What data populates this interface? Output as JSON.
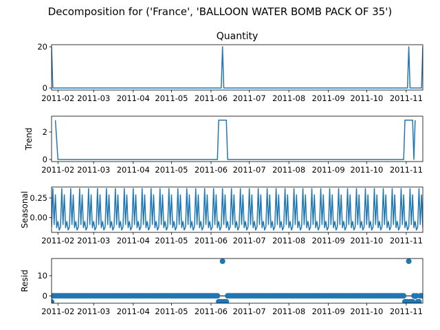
{
  "chart_data": {
    "type": "line",
    "title": "Decomposition for ('France', 'BALLOON WATER BOMB PACK OF 35')",
    "x_tick_labels": [
      "2011-02",
      "2011-03",
      "2011-04",
      "2011-05",
      "2011-06",
      "2011-07",
      "2011-08",
      "2011-09",
      "2011-10",
      "2011-11"
    ],
    "x_range": [
      "2011-01-27",
      "2011-11-14"
    ],
    "color": "#1f77b4",
    "panels": [
      {
        "title": "Quantity",
        "ylabel": "",
        "kind": "line",
        "ylim": [
          -1,
          21
        ],
        "yticks": [
          0,
          20
        ],
        "points": [
          [
            "2011-01-27",
            20
          ],
          [
            "2011-01-28",
            0
          ],
          [
            "2011-06-09",
            0
          ],
          [
            "2011-06-10",
            20
          ],
          [
            "2011-06-11",
            0
          ],
          [
            "2011-11-02",
            0
          ],
          [
            "2011-11-03",
            20
          ],
          [
            "2011-11-04",
            0
          ],
          [
            "2011-11-13",
            0
          ],
          [
            "2011-11-14",
            20
          ]
        ]
      },
      {
        "title": "",
        "ylabel": "Trend",
        "kind": "line",
        "ylim": [
          -0.15,
          3.15
        ],
        "yticks": [
          0,
          2
        ],
        "points": [
          [
            "2011-01-30",
            2.86
          ],
          [
            "2011-02-01",
            0
          ],
          [
            "2011-06-06",
            0
          ],
          [
            "2011-06-07",
            2.86
          ],
          [
            "2011-06-13",
            2.86
          ],
          [
            "2011-06-14",
            0
          ],
          [
            "2011-10-30",
            0
          ],
          [
            "2011-10-31",
            2.86
          ],
          [
            "2011-11-06",
            2.86
          ],
          [
            "2011-11-07",
            0
          ],
          [
            "2011-11-08",
            2.86
          ]
        ]
      },
      {
        "title": "",
        "ylabel": "Seasonal",
        "kind": "seasonal",
        "ylim": [
          -0.19,
          0.39
        ],
        "yticks": [
          0.0,
          0.25
        ],
        "ytick_labels": [
          "0.00",
          "0.25"
        ],
        "period_days": 7,
        "cycle": [
          -0.12,
          0.37,
          -0.09,
          0.29,
          -0.13,
          -0.05,
          -0.16
        ]
      },
      {
        "title": "",
        "ylabel": "Resid",
        "kind": "scatter",
        "ylim": [
          -3.6,
          18.5
        ],
        "yticks": [
          0,
          10
        ],
        "baseline": 0,
        "outliers": [
          [
            "2011-01-27",
            -2.86
          ],
          [
            "2011-06-07",
            -2.86
          ],
          [
            "2011-06-08",
            -2.86
          ],
          [
            "2011-06-09",
            -2.86
          ],
          [
            "2011-06-10",
            17.14
          ],
          [
            "2011-06-11",
            -2.86
          ],
          [
            "2011-06-12",
            -2.86
          ],
          [
            "2011-06-13",
            -2.86
          ],
          [
            "2011-10-31",
            -2.86
          ],
          [
            "2011-11-01",
            -2.86
          ],
          [
            "2011-11-02",
            -2.86
          ],
          [
            "2011-11-03",
            17.14
          ],
          [
            "2011-11-04",
            -2.86
          ],
          [
            "2011-11-05",
            -2.86
          ],
          [
            "2011-11-06",
            -2.86
          ],
          [
            "2011-11-08",
            -0.2
          ],
          [
            "2011-11-10",
            -2.86
          ],
          [
            "2011-11-11",
            -2.86
          ]
        ]
      }
    ]
  }
}
